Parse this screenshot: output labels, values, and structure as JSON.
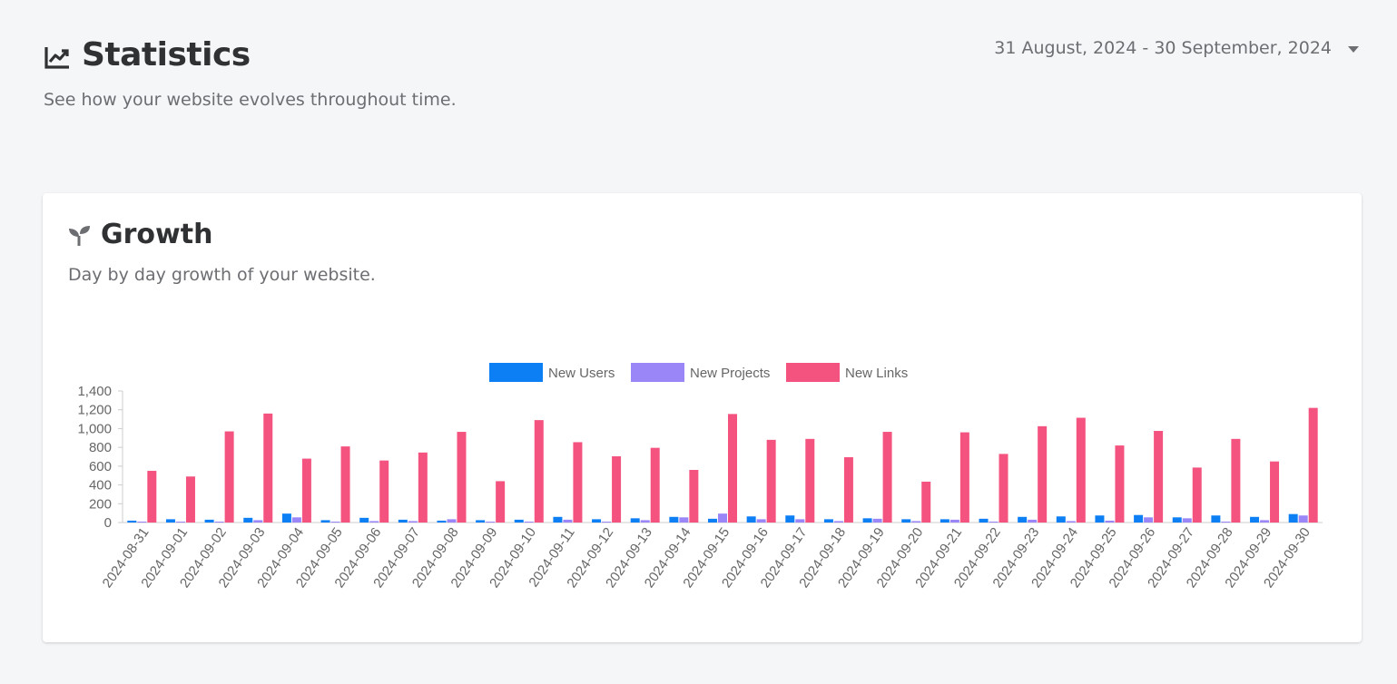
{
  "header": {
    "icon": "chart-line-icon",
    "title": "Statistics",
    "subtitle": "See how your website evolves throughout time."
  },
  "date_range": {
    "label": "31 August, 2024 - 30 September, 2024",
    "icon": "caret-down-icon"
  },
  "growth_card": {
    "icon": "seedling-icon",
    "title": "Growth",
    "subtitle": "Day by day growth of your website."
  },
  "chart_data": {
    "type": "bar",
    "categories": [
      "2024-08-31",
      "2024-09-01",
      "2024-09-02",
      "2024-09-03",
      "2024-09-04",
      "2024-09-05",
      "2024-09-06",
      "2024-09-07",
      "2024-09-08",
      "2024-09-09",
      "2024-09-10",
      "2024-09-11",
      "2024-09-12",
      "2024-09-13",
      "2024-09-14",
      "2024-09-15",
      "2024-09-16",
      "2024-09-17",
      "2024-09-18",
      "2024-09-19",
      "2024-09-20",
      "2024-09-21",
      "2024-09-22",
      "2024-09-23",
      "2024-09-24",
      "2024-09-25",
      "2024-09-26",
      "2024-09-27",
      "2024-09-28",
      "2024-09-29",
      "2024-09-30"
    ],
    "series": [
      {
        "name": "New Users",
        "color": "#0d7ff5",
        "values": [
          20,
          35,
          30,
          50,
          95,
          25,
          50,
          30,
          20,
          25,
          30,
          60,
          35,
          45,
          60,
          40,
          65,
          75,
          35,
          45,
          35,
          35,
          40,
          60,
          65,
          75,
          80,
          55,
          75,
          60,
          90
        ]
      },
      {
        "name": "New Projects",
        "color": "#9a86f7",
        "values": [
          10,
          8,
          8,
          25,
          55,
          8,
          15,
          15,
          35,
          8,
          8,
          30,
          8,
          25,
          55,
          95,
          35,
          35,
          15,
          40,
          15,
          30,
          10,
          30,
          15,
          20,
          55,
          45,
          10,
          25,
          75
        ]
      },
      {
        "name": "New Links",
        "color": "#f4537f",
        "values": [
          550,
          490,
          970,
          1160,
          680,
          810,
          660,
          745,
          965,
          440,
          1090,
          855,
          705,
          795,
          560,
          1155,
          880,
          890,
          695,
          965,
          435,
          960,
          730,
          1025,
          1115,
          820,
          975,
          585,
          890,
          650,
          1220
        ]
      }
    ],
    "ylim": [
      0,
      1400
    ],
    "yticks": [
      "0",
      "200",
      "400",
      "600",
      "800",
      "1,000",
      "1,200",
      "1,400"
    ],
    "legend_position": "top",
    "grid": false
  }
}
